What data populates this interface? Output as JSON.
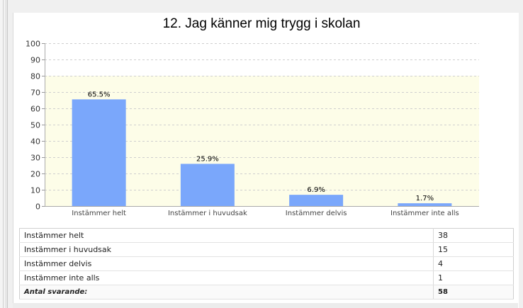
{
  "chart_data": {
    "type": "bar",
    "title": "12. Jag känner mig trygg i skolan",
    "categories": [
      "Instämmer helt",
      "Instämmer i huvudsak",
      "Instämmer delvis",
      "Instämmer inte alls"
    ],
    "values": [
      65.5,
      25.9,
      6.9,
      1.7
    ],
    "data_labels": [
      "65.5%",
      "25.9%",
      "6.9%",
      "1.7%"
    ],
    "ylim": [
      0,
      100
    ],
    "yticks": [
      "0",
      "10",
      "20",
      "30",
      "40",
      "50",
      "60",
      "70",
      "80",
      "90",
      "100"
    ],
    "xlabel": "",
    "ylabel": "",
    "grid": true,
    "colors": {
      "bar": "#7aa7fb",
      "plot_bg": "#fdfde8",
      "grid": "#cfcfcf"
    }
  },
  "table": {
    "rows": [
      {
        "label": "Instämmer helt",
        "count": "38"
      },
      {
        "label": "Instämmer i huvudsak",
        "count": "15"
      },
      {
        "label": "Instämmer delvis",
        "count": "4"
      },
      {
        "label": "Instämmer inte alls",
        "count": "1"
      }
    ],
    "total": {
      "label": "Antal svarande:",
      "count": "58"
    }
  }
}
